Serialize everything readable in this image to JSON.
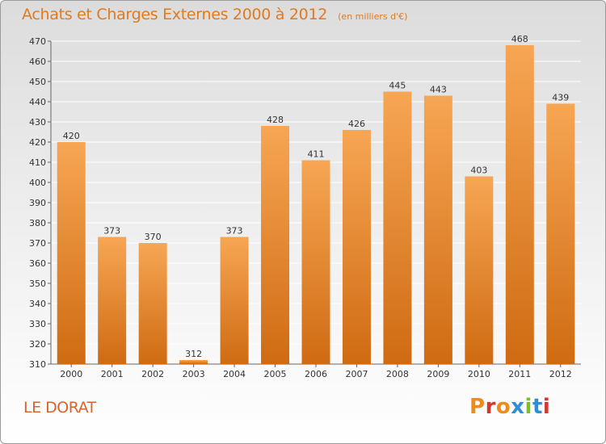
{
  "header": {
    "title": "Achats et Charges Externes 2000 à 2012",
    "subtitle": "(en milliers d'€)"
  },
  "footer": {
    "place": "LE DORAT",
    "logo_text": "Proxiti"
  },
  "colors": {
    "bar_light": "#f7a654",
    "bar_dark": "#cf6b12",
    "title": "#e07a1f",
    "grid": "#ffffff"
  },
  "chart_data": {
    "type": "bar",
    "title": "Achats et Charges Externes 2000 à 2012",
    "subtitle": "(en milliers d'€)",
    "categories": [
      "2000",
      "2001",
      "2002",
      "2003",
      "2004",
      "2005",
      "2006",
      "2007",
      "2008",
      "2009",
      "2010",
      "2011",
      "2012"
    ],
    "values": [
      420,
      373,
      370,
      312,
      373,
      428,
      411,
      426,
      445,
      443,
      403,
      468,
      439
    ],
    "ylim": [
      310,
      470
    ],
    "yticks": [
      310,
      320,
      330,
      340,
      350,
      360,
      370,
      380,
      390,
      400,
      410,
      420,
      430,
      440,
      450,
      460,
      470
    ],
    "grid": true,
    "xlabel": "",
    "ylabel": ""
  }
}
